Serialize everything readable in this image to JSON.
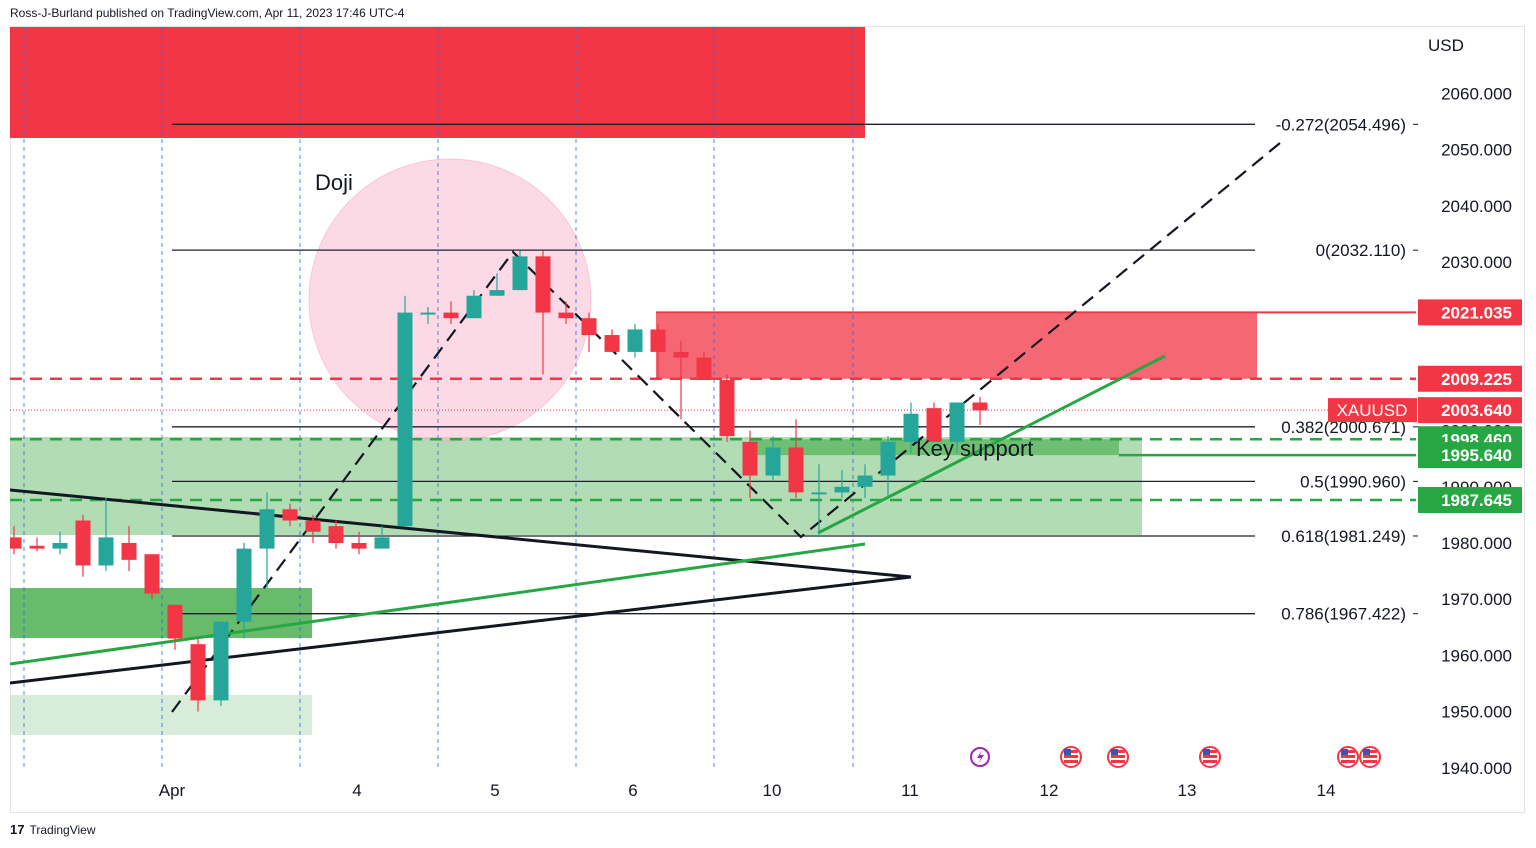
{
  "header": {
    "published": "Ross-J-Burland published on TradingView.com, Apr 11, 2023 17:46 UTC-4"
  },
  "footer": {
    "brand": "TradingView",
    "logo_glyph": "17"
  },
  "colors": {
    "up": "#26a69a",
    "down": "#f23645",
    "support": "#27a644",
    "fib_ext": "#1e222d",
    "resistance_zone": "#f23645",
    "doji_circle": "#f8bbd0"
  },
  "chart_data": {
    "type": "candlestick",
    "symbol": "XAUUSD",
    "currency": "USD",
    "ylim": [
      1940,
      2067
    ],
    "y_ticks": [
      1940,
      1950,
      1960,
      1970,
      1980,
      1990,
      2000,
      2010,
      2020,
      2030,
      2040,
      2050,
      2060
    ],
    "y_tick_labels": [
      "1940.000",
      "1950.000",
      "1960.000",
      "1970.000",
      "1980.000",
      "1990.000",
      "2000.000",
      "2010.000",
      "2020.000",
      "2030.000",
      "2040.000",
      "2050.000",
      "2060.000"
    ],
    "x_ticks": [
      "Apr",
      "4",
      "5",
      "6",
      "10",
      "11",
      "12",
      "13",
      "14"
    ],
    "candles": [
      {
        "o": 1981.0,
        "h": 1983.0,
        "l": 1978.0,
        "c": 1979.0
      },
      {
        "o": 1979.5,
        "h": 1981.0,
        "l": 1978.5,
        "c": 1979.0
      },
      {
        "o": 1979.0,
        "h": 1982.0,
        "l": 1978.0,
        "c": 1980.0
      },
      {
        "o": 1984.0,
        "h": 1985.0,
        "l": 1974.0,
        "c": 1976.0
      },
      {
        "o": 1976.0,
        "h": 1988.0,
        "l": 1975.0,
        "c": 1981.0
      },
      {
        "o": 1980.0,
        "h": 1983.0,
        "l": 1975.0,
        "c": 1977.0
      },
      {
        "o": 1978.0,
        "h": 1978.0,
        "l": 1970.0,
        "c": 1971.0
      },
      {
        "o": 1969.0,
        "h": 1969.0,
        "l": 1961.0,
        "c": 1963.0
      },
      {
        "o": 1962.0,
        "h": 1963.0,
        "l": 1950.0,
        "c": 1952.0
      },
      {
        "o": 1952.0,
        "h": 1966.0,
        "l": 1951.0,
        "c": 1966.0
      },
      {
        "o": 1966.0,
        "h": 1980.0,
        "l": 1963.0,
        "c": 1979.0
      },
      {
        "o": 1979.0,
        "h": 1989.0,
        "l": 1972.0,
        "c": 1986.0
      },
      {
        "o": 1986.0,
        "h": 1987.0,
        "l": 1983.0,
        "c": 1984.0
      },
      {
        "o": 1984.0,
        "h": 1985.0,
        "l": 1980.0,
        "c": 1982.0
      },
      {
        "o": 1983.0,
        "h": 1984.0,
        "l": 1979.0,
        "c": 1980.0
      },
      {
        "o": 1980.0,
        "h": 1982.0,
        "l": 1978.0,
        "c": 1979.0
      },
      {
        "o": 1979.0,
        "h": 1983.0,
        "l": 1979.0,
        "c": 1981.0
      },
      {
        "o": 1983.0,
        "h": 2024.0,
        "l": 1983.0,
        "c": 2021.0
      },
      {
        "o": 2021.0,
        "h": 2022.0,
        "l": 2019.0,
        "c": 2021.0
      },
      {
        "o": 2021.0,
        "h": 2023.0,
        "l": 2019.0,
        "c": 2020.0
      },
      {
        "o": 2020.0,
        "h": 2025.0,
        "l": 2020.0,
        "c": 2024.0
      },
      {
        "o": 2024.0,
        "h": 2028.0,
        "l": 2024.0,
        "c": 2025.0
      },
      {
        "o": 2025.0,
        "h": 2032.0,
        "l": 2025.0,
        "c": 2031.0
      },
      {
        "o": 2031.0,
        "h": 2032.0,
        "l": 2010.0,
        "c": 2021.0
      },
      {
        "o": 2021.0,
        "h": 2023.0,
        "l": 2019.0,
        "c": 2020.0
      },
      {
        "o": 2020.0,
        "h": 2021.0,
        "l": 2014.0,
        "c": 2017.0
      },
      {
        "o": 2017.0,
        "h": 2018.0,
        "l": 2014.0,
        "c": 2014.0
      },
      {
        "o": 2014.0,
        "h": 2019.0,
        "l": 2013.0,
        "c": 2018.0
      },
      {
        "o": 2018.0,
        "h": 2019.0,
        "l": 2009.0,
        "c": 2014.0
      },
      {
        "o": 2014.0,
        "h": 2016.0,
        "l": 2002.0,
        "c": 2013.0
      },
      {
        "o": 2013.0,
        "h": 2014.0,
        "l": 2009.0,
        "c": 2009.0
      },
      {
        "o": 2009.0,
        "h": 2010.0,
        "l": 1998.0,
        "c": 1999.0
      },
      {
        "o": 1998.0,
        "h": 2000.0,
        "l": 1988.0,
        "c": 1992.0
      },
      {
        "o": 1992.0,
        "h": 1999.0,
        "l": 1991.0,
        "c": 1997.0
      },
      {
        "o": 1997.0,
        "h": 2002.0,
        "l": 1988.0,
        "c": 1989.0
      },
      {
        "o": 1989.0,
        "h": 1994.0,
        "l": 1981.0,
        "c": 1989.0
      },
      {
        "o": 1989.0,
        "h": 1993.0,
        "l": 1988.0,
        "c": 1990.0
      },
      {
        "o": 1990.0,
        "h": 1994.0,
        "l": 1988.0,
        "c": 1992.0
      },
      {
        "o": 1992.0,
        "h": 1999.0,
        "l": 1988.0,
        "c": 1998.0
      },
      {
        "o": 1998.0,
        "h": 2005.0,
        "l": 1996.0,
        "c": 2003.0
      },
      {
        "o": 2004.0,
        "h": 2005.0,
        "l": 1998.0,
        "c": 1998.0
      },
      {
        "o": 1998.0,
        "h": 2005.0,
        "l": 1996.0,
        "c": 2005.0
      },
      {
        "o": 2005.0,
        "h": 2006.0,
        "l": 2001.0,
        "c": 2003.6
      }
    ],
    "fib_levels": [
      {
        "label": "-0.272(2054.496)",
        "value": 2054.496
      },
      {
        "label": "0(2032.110)",
        "value": 2032.11
      },
      {
        "label": "0.382(2000.671)",
        "value": 2000.671
      },
      {
        "label": "0.5(1990.960)",
        "value": 1990.96
      },
      {
        "label": "0.618(1981.249)",
        "value": 1981.249
      },
      {
        "label": "0.786(1967.422)",
        "value": 1967.422
      }
    ],
    "price_tags": [
      {
        "text": "2021.035",
        "value": 2021.035,
        "color": "#f23645"
      },
      {
        "text": "2009.225",
        "value": 2009.225,
        "color": "#f23645"
      },
      {
        "text": "2003.640",
        "value": 2003.64,
        "color": "#f23645",
        "symbol": "XAUUSD"
      },
      {
        "text": "1998.460",
        "value": 1998.46,
        "color": "#27a644"
      },
      {
        "text": "1995.640",
        "value": 1995.64,
        "color": "#27a644"
      },
      {
        "text": "1987.645",
        "value": 1987.645,
        "color": "#27a644"
      }
    ],
    "annotations": [
      {
        "text": "Doji"
      },
      {
        "text": "Key support"
      }
    ]
  }
}
